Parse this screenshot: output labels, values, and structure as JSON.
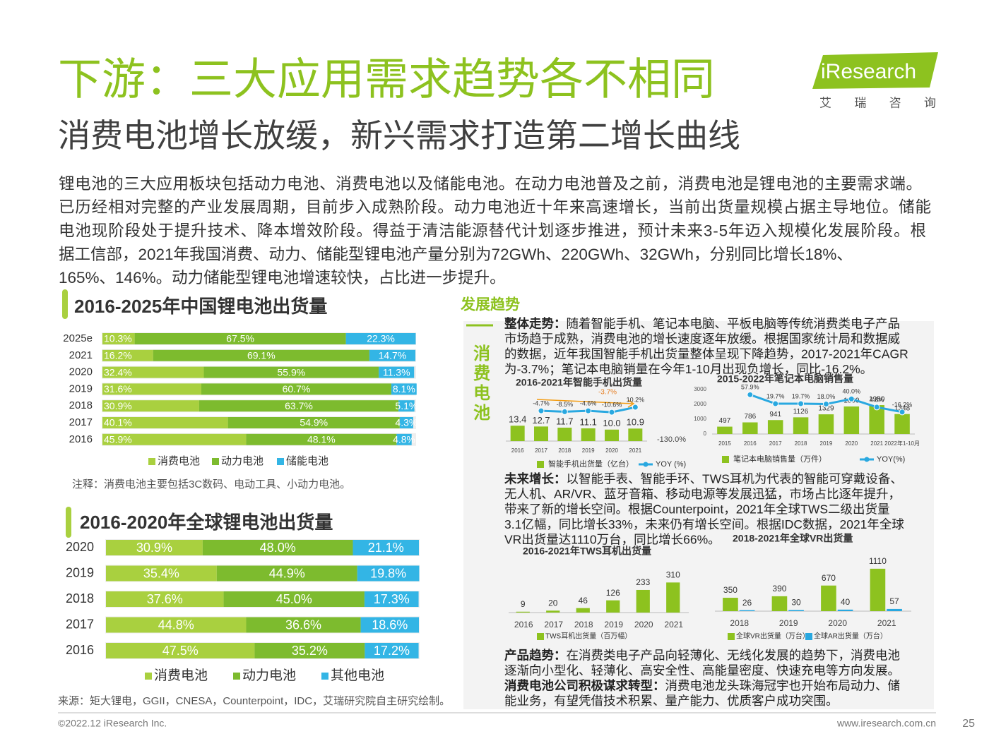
{
  "header": {
    "title": "下游：三大应用需求趋势各不相同",
    "subtitle": "消费电池增长放缓，新兴需求打造第二增长曲线"
  },
  "logo": {
    "brand": "iResearch",
    "cn": "艾 瑞 咨 询"
  },
  "intro": [
    "锂电池的三大应用板块包括动力电池、消费电池以及储能电池。在动力电池普及之前，消费电池是锂电池的主要需求端。",
    "已历经相对完整的产业发展周期，目前步入成熟阶段。动力电池近十年来高速增长，当前出货量规模占据主导地位。储能",
    "电池现阶段处于提升技术、降本增效阶段。得益于清洁能源替代计划逐步推进，预计未来3-5年迈入规模化发展阶段。根",
    "据工信部，2021年我国消费、动力、储能型锂电池产量分别为72GWh、220GWh、32GWh，分别同比增长18%、",
    "165%、146%。动力储能型锂电池增速较快，占比进一步提升。"
  ],
  "panel": {
    "heading": "发展趋势",
    "side_label": "消费电池",
    "sections": [
      {
        "label": "整体走势：",
        "lines": [
          "随着智能手机、笔记本电脑、平板电脑等传统消费类电子产品",
          "市场趋于成熟，消费电池的增长速度逐年放缓。根据国家统计局和数据威",
          "的数据，近年我国智能手机出货量整体呈现下降趋势，2017-2021年CAGR",
          "为-3.7%；笔记本电脑销量在今年1-10月出现负增长，同比-16.2%。"
        ]
      },
      {
        "label": "未来增长：",
        "lines": [
          "以智能手表、智能手环、TWS耳机为代表的智能可穿戴设备、",
          "无人机、AR/VR、蓝牙音箱、移动电源等发展迅猛，市场占比逐年提升，",
          "带来了新的增长空间。根据Counterpoint，2021年全球TWS二级出货量",
          "3.1亿幅，同比增长33%，未来仍有增长空间。根据IDC数据，2021年全球",
          "VR出货量达1110万台，同比增长66%。"
        ]
      },
      {
        "label": "产品趋势：",
        "lines": [
          "在消费类电子产品向轻薄化、无线化发展的趋势下，消费电池",
          "逐渐向小型化、轻薄化、高安全性、高能量密度、快速充电等方向发展。"
        ]
      },
      {
        "label": "消费电池公司积极谋求转型：",
        "lines": [
          "消费电池龙头珠海冠宇也开始布局动力、储",
          "能业务，有望凭借技术积累、量产能力、优质客户成功突围。"
        ]
      }
    ]
  },
  "chart_data": [
    {
      "type": "stacked_hbar",
      "title": "2016-2025年中国锂电池出货量",
      "categories": [
        "2025e",
        "2021",
        "2020",
        "2019",
        "2018",
        "2017",
        "2016"
      ],
      "xlim": [
        0,
        100
      ],
      "series": [
        {
          "name": "消费电池",
          "color": "#a9d03f",
          "values": [
            10.3,
            16.2,
            32.4,
            31.6,
            30.9,
            40.1,
            45.9
          ],
          "value_labels": [
            "10.3%",
            "16.2%",
            "32.4%",
            "31.6%",
            "30.9%",
            "40.1%",
            "45.9%"
          ]
        },
        {
          "name": "动力电池",
          "color": "#7dbb2e",
          "values": [
            67.5,
            69.1,
            55.9,
            60.7,
            63.7,
            54.9,
            48.1
          ],
          "value_labels": [
            "67.5%",
            "69.1%",
            "55.9%",
            "60.7%",
            "63.7%",
            "54.9%",
            "48.1%"
          ]
        },
        {
          "name": "储能电池",
          "color": "#33b5e5",
          "values": [
            22.3,
            14.7,
            11.3,
            8.1,
            5.1,
            4.3,
            4.8
          ],
          "value_labels": [
            "22.3%",
            "14.7%",
            "11.3%",
            "8.1%",
            "5.1%",
            "4.3%",
            "4.8%"
          ]
        }
      ],
      "note": "注释：消费电池主要包括3C数码、电动工具、小动力电池。"
    },
    {
      "type": "stacked_hbar",
      "title": "2016-2020年全球锂电池出货量",
      "categories": [
        "2020",
        "2019",
        "2018",
        "2017",
        "2016"
      ],
      "xlim": [
        0,
        100
      ],
      "series": [
        {
          "name": "消费电池",
          "color": "#a9d03f",
          "values": [
            30.9,
            35.4,
            37.6,
            44.8,
            47.5
          ],
          "value_labels": [
            "30.9%",
            "35.4%",
            "37.6%",
            "44.8%",
            "47.5%"
          ]
        },
        {
          "name": "动力电池",
          "color": "#7dbb2e",
          "values": [
            48.0,
            44.9,
            45.0,
            36.6,
            35.2
          ],
          "value_labels": [
            "48.0%",
            "44.9%",
            "45.0%",
            "36.6%",
            "35.2%"
          ]
        },
        {
          "name": "其他电池",
          "color": "#33b5e5",
          "values": [
            21.1,
            19.8,
            17.3,
            18.6,
            17.2
          ],
          "value_labels": [
            "21.1%",
            "19.8%",
            "17.3%",
            "18.6%",
            "17.2%"
          ]
        }
      ],
      "source": "来源：矩大锂电，GGII，CNESA，Counterpoint，IDC，艾瑞研究院自主研究绘制。"
    },
    {
      "type": "bar_line",
      "title": "2016-2021年智能手机出货量",
      "categories": [
        "2016",
        "2017",
        "2018",
        "2019",
        "2020",
        "2021"
      ],
      "ylim": [
        0,
        40
      ],
      "y2lim": [
        -130,
        60
      ],
      "y2ticks": [
        {
          "value": -130,
          "label": "-130.0%"
        }
      ],
      "annotation": "-3.7%",
      "series": [
        {
          "name": "智能手机出货量（亿台）",
          "type": "bar",
          "color": "#8dc21f",
          "values": [
            13.4,
            12.7,
            11.7,
            11.1,
            10.0,
            10.9
          ],
          "value_labels": [
            "13.4",
            "12.7",
            "11.7",
            "11.1",
            "10.0",
            "10.9"
          ]
        },
        {
          "name": "YOY (%)",
          "type": "line",
          "axis": "y2",
          "color": "#29a8e0",
          "values": [
            null,
            -4.7,
            -8.5,
            -4.6,
            -10.6,
            10.2
          ],
          "value_labels": [
            null,
            "-4.7%",
            "-8.5%",
            "-4.6%",
            "-10.6%",
            "10.2%"
          ]
        }
      ]
    },
    {
      "type": "bar_line",
      "title": "2015-2022年笔记本电脑销售量",
      "categories": [
        "2015",
        "2016",
        "2017",
        "2018",
        "2019",
        "2020",
        "2021",
        "2022年1-10月"
      ],
      "ylim": [
        0,
        3000
      ],
      "yticks": [
        0,
        1000,
        2000,
        3000
      ],
      "y2lim": [
        -110,
        80
      ],
      "series": [
        {
          "name": "笔记本电脑销售量（万件）",
          "type": "bar",
          "color": "#8dc21f",
          "values": [
            497,
            786,
            941,
            1126,
            1329,
            1860,
            1950,
            1348
          ]
        },
        {
          "name": "YOY(%)",
          "type": "line",
          "axis": "y2",
          "color": "#29a8e0",
          "values": [
            null,
            57.9,
            19.7,
            19.7,
            18.0,
            40.0,
            4.8,
            -16.2
          ],
          "value_labels": [
            null,
            "57.9%",
            "19.7%",
            "19.7%",
            "18.0%",
            "40.0%",
            "4.8%",
            "-16.2%"
          ]
        }
      ]
    },
    {
      "type": "bar",
      "title": "2016-2021年TWS耳机出货量",
      "categories": [
        "2016",
        "2017",
        "2018",
        "2019",
        "2020",
        "2021"
      ],
      "ylim": [
        0,
        400
      ],
      "series": [
        {
          "name": "TWS耳机出货量（百万幅）",
          "color": "#8dc21f",
          "values": [
            9,
            20,
            46,
            126,
            233,
            310
          ]
        }
      ]
    },
    {
      "type": "bar",
      "title": "2018-2021年全球VR出货量",
      "categories": [
        "2018",
        "2019",
        "2020",
        "2021"
      ],
      "ylim": [
        0,
        1200
      ],
      "series": [
        {
          "name": "全球VR出货量（万台）",
          "color": "#8dc21f",
          "values": [
            350,
            390,
            670,
            1110
          ]
        },
        {
          "name": "全球AR出货量（万台）",
          "color": "#29a8e0",
          "values": [
            26,
            30,
            40,
            57
          ]
        }
      ]
    }
  ],
  "footer": {
    "copyright": "©2022.12 iResearch Inc.",
    "url": "www.iresearch.com.cn",
    "page": "25"
  }
}
